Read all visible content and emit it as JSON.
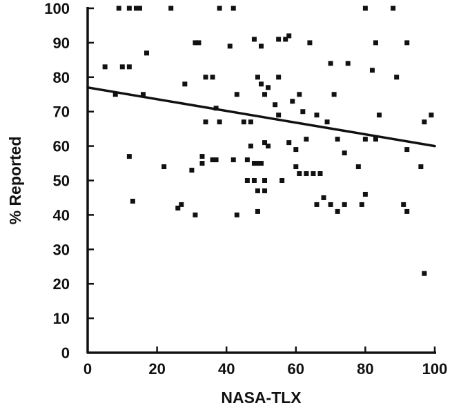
{
  "chart_data": {
    "type": "scatter",
    "title": "",
    "xlabel": "NASA-TLX",
    "ylabel": "% Reported",
    "xlim": [
      0,
      100
    ],
    "ylim": [
      0,
      100
    ],
    "xticks": [
      "0",
      "20",
      "40",
      "60",
      "80",
      "100"
    ],
    "yticks": [
      "0",
      "10",
      "20",
      "30",
      "40",
      "50",
      "60",
      "70",
      "80",
      "90",
      "100"
    ],
    "grid": false,
    "legend": "none",
    "colors": {
      "points": "#111111",
      "line": "#111111",
      "axis": "#111111"
    },
    "trendline": {
      "x": [
        0,
        100
      ],
      "y": [
        77,
        60
      ]
    },
    "points": [
      {
        "x": 9,
        "y": 100
      },
      {
        "x": 12,
        "y": 100
      },
      {
        "x": 14,
        "y": 100
      },
      {
        "x": 15,
        "y": 100
      },
      {
        "x": 24,
        "y": 100
      },
      {
        "x": 38,
        "y": 100
      },
      {
        "x": 42,
        "y": 100
      },
      {
        "x": 80,
        "y": 100
      },
      {
        "x": 88,
        "y": 100
      },
      {
        "x": 5,
        "y": 83
      },
      {
        "x": 10,
        "y": 83
      },
      {
        "x": 12,
        "y": 83
      },
      {
        "x": 17,
        "y": 87
      },
      {
        "x": 8,
        "y": 75
      },
      {
        "x": 16,
        "y": 75
      },
      {
        "x": 28,
        "y": 78
      },
      {
        "x": 31,
        "y": 90
      },
      {
        "x": 32,
        "y": 90
      },
      {
        "x": 41,
        "y": 89
      },
      {
        "x": 48,
        "y": 91
      },
      {
        "x": 50,
        "y": 89
      },
      {
        "x": 55,
        "y": 91
      },
      {
        "x": 57,
        "y": 91
      },
      {
        "x": 58,
        "y": 92
      },
      {
        "x": 64,
        "y": 90
      },
      {
        "x": 70,
        "y": 84
      },
      {
        "x": 75,
        "y": 84
      },
      {
        "x": 83,
        "y": 90
      },
      {
        "x": 92,
        "y": 90
      },
      {
        "x": 82,
        "y": 82
      },
      {
        "x": 89,
        "y": 80
      },
      {
        "x": 34,
        "y": 80
      },
      {
        "x": 36,
        "y": 80
      },
      {
        "x": 43,
        "y": 75
      },
      {
        "x": 49,
        "y": 80
      },
      {
        "x": 50,
        "y": 78
      },
      {
        "x": 52,
        "y": 77
      },
      {
        "x": 51,
        "y": 75
      },
      {
        "x": 54,
        "y": 72
      },
      {
        "x": 55,
        "y": 80
      },
      {
        "x": 59,
        "y": 73
      },
      {
        "x": 61,
        "y": 75
      },
      {
        "x": 62,
        "y": 70
      },
      {
        "x": 71,
        "y": 75
      },
      {
        "x": 66,
        "y": 69
      },
      {
        "x": 69,
        "y": 67
      },
      {
        "x": 34,
        "y": 67
      },
      {
        "x": 37,
        "y": 71
      },
      {
        "x": 38,
        "y": 67
      },
      {
        "x": 45,
        "y": 67
      },
      {
        "x": 47,
        "y": 67
      },
      {
        "x": 55,
        "y": 69
      },
      {
        "x": 63,
        "y": 62
      },
      {
        "x": 72,
        "y": 62
      },
      {
        "x": 80,
        "y": 62
      },
      {
        "x": 83,
        "y": 62
      },
      {
        "x": 84,
        "y": 69
      },
      {
        "x": 99,
        "y": 69
      },
      {
        "x": 97,
        "y": 67
      },
      {
        "x": 92,
        "y": 59
      },
      {
        "x": 12,
        "y": 57
      },
      {
        "x": 22,
        "y": 54
      },
      {
        "x": 30,
        "y": 53
      },
      {
        "x": 33,
        "y": 55
      },
      {
        "x": 33,
        "y": 57
      },
      {
        "x": 36,
        "y": 56
      },
      {
        "x": 37,
        "y": 56
      },
      {
        "x": 42,
        "y": 56
      },
      {
        "x": 46,
        "y": 56
      },
      {
        "x": 47,
        "y": 60
      },
      {
        "x": 48,
        "y": 55
      },
      {
        "x": 49,
        "y": 55
      },
      {
        "x": 50,
        "y": 55
      },
      {
        "x": 51,
        "y": 61
      },
      {
        "x": 52,
        "y": 60
      },
      {
        "x": 58,
        "y": 61
      },
      {
        "x": 60,
        "y": 59
      },
      {
        "x": 60,
        "y": 54
      },
      {
        "x": 61,
        "y": 52
      },
      {
        "x": 63,
        "y": 52
      },
      {
        "x": 65,
        "y": 52
      },
      {
        "x": 67,
        "y": 52
      },
      {
        "x": 74,
        "y": 58
      },
      {
        "x": 78,
        "y": 54
      },
      {
        "x": 96,
        "y": 54
      },
      {
        "x": 46,
        "y": 50
      },
      {
        "x": 48,
        "y": 50
      },
      {
        "x": 49,
        "y": 47
      },
      {
        "x": 51,
        "y": 47
      },
      {
        "x": 51,
        "y": 50
      },
      {
        "x": 56,
        "y": 50
      },
      {
        "x": 13,
        "y": 44
      },
      {
        "x": 26,
        "y": 42
      },
      {
        "x": 27,
        "y": 43
      },
      {
        "x": 31,
        "y": 40
      },
      {
        "x": 43,
        "y": 40
      },
      {
        "x": 49,
        "y": 41
      },
      {
        "x": 66,
        "y": 43
      },
      {
        "x": 68,
        "y": 45
      },
      {
        "x": 70,
        "y": 43
      },
      {
        "x": 72,
        "y": 41
      },
      {
        "x": 74,
        "y": 43
      },
      {
        "x": 79,
        "y": 43
      },
      {
        "x": 80,
        "y": 46
      },
      {
        "x": 91,
        "y": 43
      },
      {
        "x": 92,
        "y": 41
      },
      {
        "x": 97,
        "y": 23
      }
    ]
  }
}
